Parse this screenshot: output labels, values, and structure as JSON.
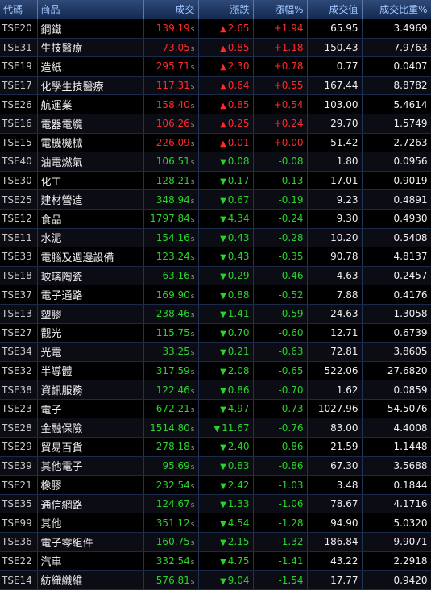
{
  "headers": [
    "代碼",
    "商品",
    "成交",
    "漲跌",
    "漲幅%",
    "成交值",
    "成交比重%"
  ],
  "rows": [
    {
      "code": "TSE20",
      "name": "鋼鐵",
      "price": "139.19",
      "change": "2.65",
      "pct": "+1.94",
      "value": "65.95",
      "ratio": "3.4969",
      "dir": "up"
    },
    {
      "code": "TSE31",
      "name": "生技醫療",
      "price": "73.05",
      "change": "0.85",
      "pct": "+1.18",
      "value": "150.43",
      "ratio": "7.9763",
      "dir": "up"
    },
    {
      "code": "TSE19",
      "name": "造紙",
      "price": "295.71",
      "change": "2.30",
      "pct": "+0.78",
      "value": "0.77",
      "ratio": "0.0407",
      "dir": "up"
    },
    {
      "code": "TSE17",
      "name": "化學生技醫療",
      "price": "117.31",
      "change": "0.64",
      "pct": "+0.55",
      "value": "167.44",
      "ratio": "8.8782",
      "dir": "up"
    },
    {
      "code": "TSE26",
      "name": "航運業",
      "price": "158.40",
      "change": "0.85",
      "pct": "+0.54",
      "value": "103.00",
      "ratio": "5.4614",
      "dir": "up"
    },
    {
      "code": "TSE16",
      "name": "電器電纜",
      "price": "106.26",
      "change": "0.25",
      "pct": "+0.24",
      "value": "29.70",
      "ratio": "1.5749",
      "dir": "up"
    },
    {
      "code": "TSE15",
      "name": "電機機械",
      "price": "226.09",
      "change": "0.01",
      "pct": "+0.00",
      "value": "51.42",
      "ratio": "2.7263",
      "dir": "up"
    },
    {
      "code": "TSE40",
      "name": "油電燃氣",
      "price": "106.51",
      "change": "0.08",
      "pct": "-0.08",
      "value": "1.80",
      "ratio": "0.0956",
      "dir": "down"
    },
    {
      "code": "TSE30",
      "name": "化工",
      "price": "128.21",
      "change": "0.17",
      "pct": "-0.13",
      "value": "17.01",
      "ratio": "0.9019",
      "dir": "down"
    },
    {
      "code": "TSE25",
      "name": "建材營造",
      "price": "348.94",
      "change": "0.67",
      "pct": "-0.19",
      "value": "9.23",
      "ratio": "0.4891",
      "dir": "down"
    },
    {
      "code": "TSE12",
      "name": "食品",
      "price": "1797.84",
      "change": "4.34",
      "pct": "-0.24",
      "value": "9.30",
      "ratio": "0.4930",
      "dir": "down"
    },
    {
      "code": "TSE11",
      "name": "水泥",
      "price": "154.16",
      "change": "0.43",
      "pct": "-0.28",
      "value": "10.20",
      "ratio": "0.5408",
      "dir": "down"
    },
    {
      "code": "TSE33",
      "name": "電腦及週邊設備",
      "price": "123.24",
      "change": "0.43",
      "pct": "-0.35",
      "value": "90.78",
      "ratio": "4.8137",
      "dir": "down"
    },
    {
      "code": "TSE18",
      "name": "玻璃陶瓷",
      "price": "63.16",
      "change": "0.29",
      "pct": "-0.46",
      "value": "4.63",
      "ratio": "0.2457",
      "dir": "down"
    },
    {
      "code": "TSE37",
      "name": "電子通路",
      "price": "169.90",
      "change": "0.88",
      "pct": "-0.52",
      "value": "7.88",
      "ratio": "0.4176",
      "dir": "down"
    },
    {
      "code": "TSE13",
      "name": "塑膠",
      "price": "238.46",
      "change": "1.41",
      "pct": "-0.59",
      "value": "24.63",
      "ratio": "1.3058",
      "dir": "down"
    },
    {
      "code": "TSE27",
      "name": "觀光",
      "price": "115.75",
      "change": "0.70",
      "pct": "-0.60",
      "value": "12.71",
      "ratio": "0.6739",
      "dir": "down"
    },
    {
      "code": "TSE34",
      "name": "光電",
      "price": "33.25",
      "change": "0.21",
      "pct": "-0.63",
      "value": "72.81",
      "ratio": "3.8605",
      "dir": "down"
    },
    {
      "code": "TSE32",
      "name": "半導體",
      "price": "317.59",
      "change": "2.08",
      "pct": "-0.65",
      "value": "522.06",
      "ratio": "27.6820",
      "dir": "down"
    },
    {
      "code": "TSE38",
      "name": "資訊服務",
      "price": "122.46",
      "change": "0.86",
      "pct": "-0.70",
      "value": "1.62",
      "ratio": "0.0859",
      "dir": "down"
    },
    {
      "code": "TSE23",
      "name": "電子",
      "price": "672.21",
      "change": "4.97",
      "pct": "-0.73",
      "value": "1027.96",
      "ratio": "54.5076",
      "dir": "down"
    },
    {
      "code": "TSE28",
      "name": "金融保險",
      "price": "1514.80",
      "change": "11.67",
      "pct": "-0.76",
      "value": "83.00",
      "ratio": "4.4008",
      "dir": "down"
    },
    {
      "code": "TSE29",
      "name": "貿易百貨",
      "price": "278.18",
      "change": "2.40",
      "pct": "-0.86",
      "value": "21.59",
      "ratio": "1.1448",
      "dir": "down"
    },
    {
      "code": "TSE39",
      "name": "其他電子",
      "price": "95.69",
      "change": "0.83",
      "pct": "-0.86",
      "value": "67.30",
      "ratio": "3.5688",
      "dir": "down"
    },
    {
      "code": "TSE21",
      "name": "橡膠",
      "price": "232.54",
      "change": "2.42",
      "pct": "-1.03",
      "value": "3.48",
      "ratio": "0.1844",
      "dir": "down"
    },
    {
      "code": "TSE35",
      "name": "通信網路",
      "price": "124.67",
      "change": "1.33",
      "pct": "-1.06",
      "value": "78.67",
      "ratio": "4.1716",
      "dir": "down"
    },
    {
      "code": "TSE99",
      "name": "其他",
      "price": "351.12",
      "change": "4.54",
      "pct": "-1.28",
      "value": "94.90",
      "ratio": "5.0320",
      "dir": "down"
    },
    {
      "code": "TSE36",
      "name": "電子零組件",
      "price": "160.75",
      "change": "2.15",
      "pct": "-1.32",
      "value": "186.84",
      "ratio": "9.9071",
      "dir": "down"
    },
    {
      "code": "TSE22",
      "name": "汽車",
      "price": "332.54",
      "change": "4.75",
      "pct": "-1.41",
      "value": "43.22",
      "ratio": "2.2918",
      "dir": "down"
    },
    {
      "code": "TSE14",
      "name": "紡織纖維",
      "price": "576.81",
      "change": "9.04",
      "pct": "-1.54",
      "value": "17.77",
      "ratio": "0.9420",
      "dir": "down"
    }
  ],
  "price_suffix": "s",
  "arrows": {
    "up": "▲",
    "down": "▼"
  },
  "colors": {
    "up": "#ff2a2a",
    "down": "#2ad42a",
    "header_text": "#9ec4ff",
    "header_bg": "#1e3560"
  }
}
